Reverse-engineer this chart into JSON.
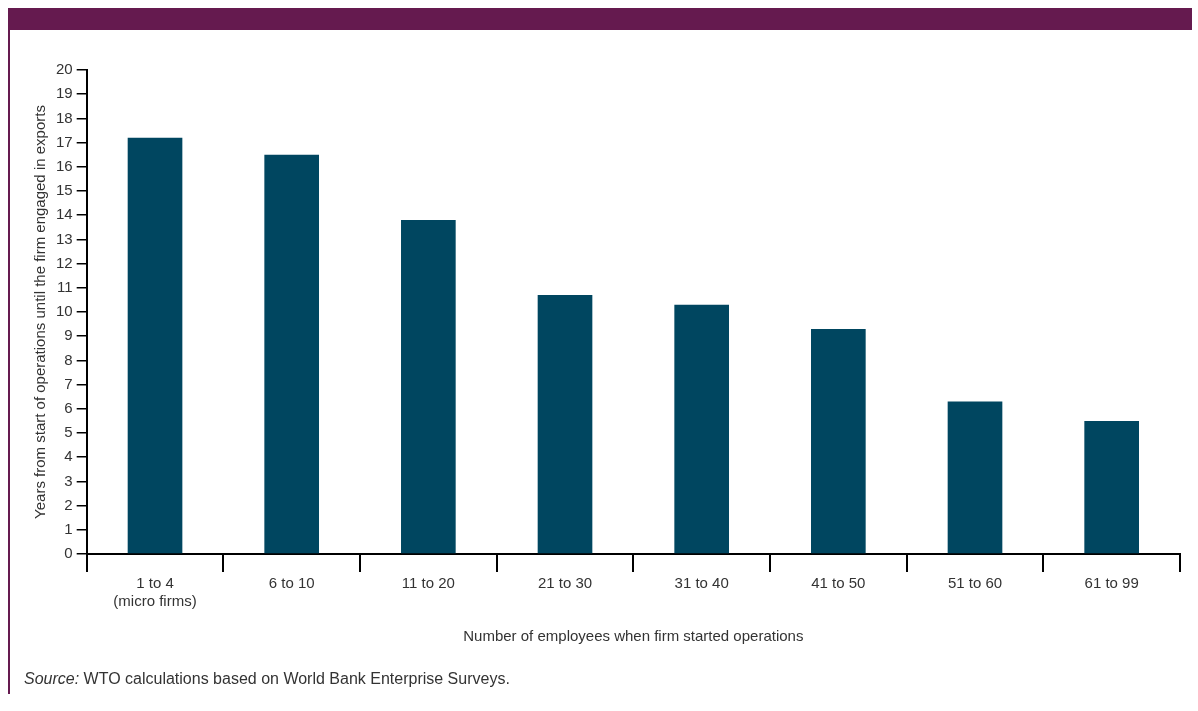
{
  "chart_data": {
    "type": "bar",
    "xlabel": "Number of employees when firm started operations",
    "ylabel": "Years from start of operations until the firm engaged in exports",
    "categories": [
      "1 to 4\n(micro firms)",
      "6 to 10",
      "11 to 20",
      "21 to 30",
      "31 to 40",
      "41 to 50",
      "51 to 60",
      "61 to 99"
    ],
    "values": [
      17.2,
      16.5,
      13.8,
      10.7,
      10.3,
      9.3,
      6.3,
      5.5
    ],
    "color": "#004660",
    "ylim": [
      0,
      20
    ],
    "yticks": [
      0,
      1,
      2,
      3,
      4,
      5,
      6,
      7,
      8,
      9,
      10,
      11,
      12,
      13,
      14,
      15,
      16,
      17,
      18,
      19,
      20
    ],
    "grid": false,
    "legend": false,
    "annotations": [
      "Source: WTO calculations based on World Bank Enterprise Surveys."
    ]
  }
}
